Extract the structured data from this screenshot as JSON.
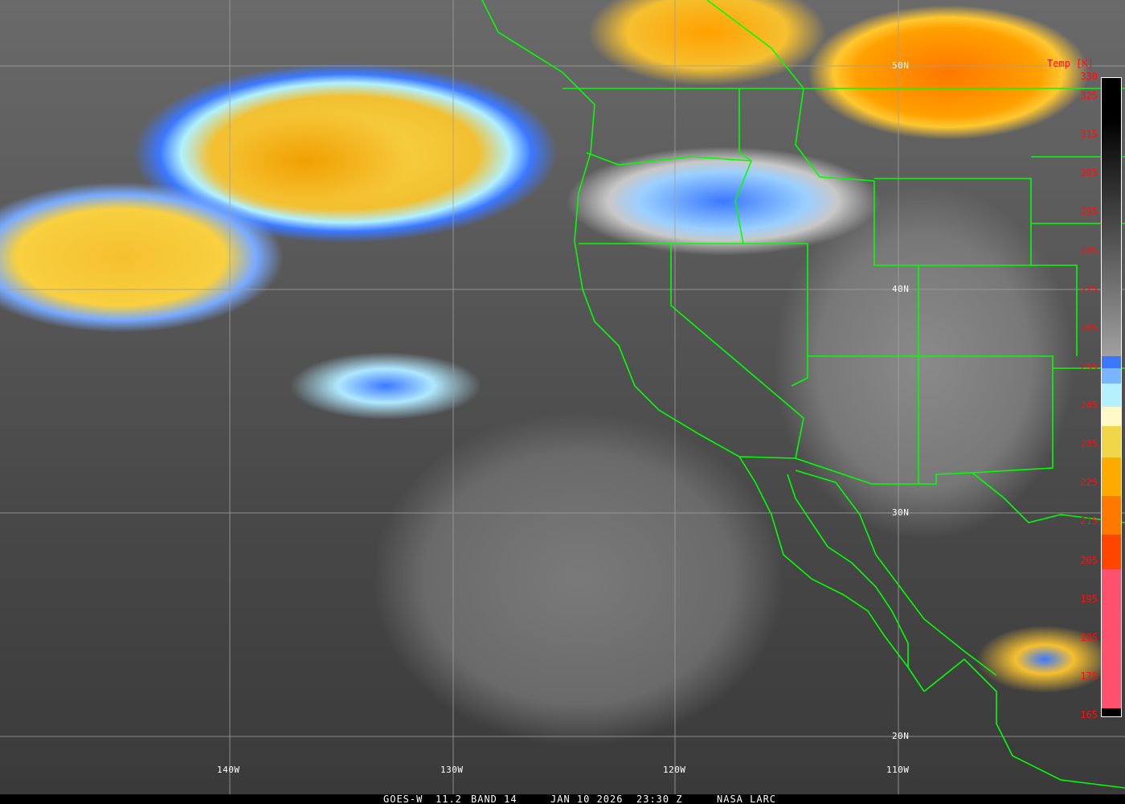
{
  "product": {
    "satellite": "GOES-W",
    "channel": "11.2",
    "band": "BAND 14",
    "date": "JAN 10 2026",
    "time": "23:30 Z",
    "credit": "NASA LARC"
  },
  "grid": {
    "latitude_labels": [
      "50N",
      "40N",
      "30N",
      "20N"
    ],
    "longitude_labels": [
      "140W",
      "130W",
      "120W",
      "110W"
    ]
  },
  "colorbar": {
    "title": "Temp [K]",
    "ticks": [
      "330",
      "325",
      "315",
      "305",
      "295",
      "285",
      "275",
      "265",
      "255",
      "245",
      "235",
      "225",
      "215",
      "205",
      "195",
      "185",
      "175",
      "165"
    ],
    "range_k": [
      165,
      330
    ],
    "segments": [
      {
        "from": 330,
        "to": 258,
        "color": "gradient-black-to-gray"
      },
      {
        "from": 258,
        "to": 255,
        "color": "#3c78ff"
      },
      {
        "from": 255,
        "to": 251,
        "color": "#78b4ff"
      },
      {
        "from": 251,
        "to": 245,
        "color": "#b4f0ff"
      },
      {
        "from": 245,
        "to": 240,
        "color": "#fff8c8"
      },
      {
        "from": 240,
        "to": 232,
        "color": "#f2d64a"
      },
      {
        "from": 232,
        "to": 222,
        "color": "#ffaa00"
      },
      {
        "from": 222,
        "to": 212,
        "color": "#ff7800"
      },
      {
        "from": 212,
        "to": 203,
        "color": "#ff4600"
      },
      {
        "from": 203,
        "to": 167,
        "color": "#ff506e"
      },
      {
        "from": 167,
        "to": 165,
        "color": "#000000"
      }
    ]
  },
  "colors": {
    "boundaries": "#00ff00",
    "grid": "#a0a0a0",
    "tick_labels": "#ff1010"
  }
}
